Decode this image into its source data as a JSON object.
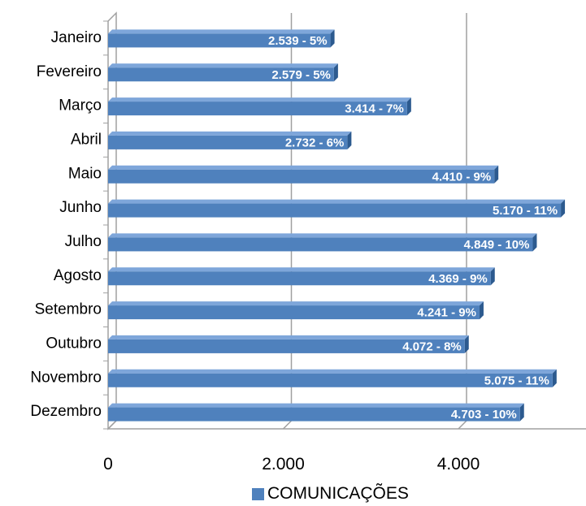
{
  "chart_data": {
    "type": "bar",
    "orientation": "horizontal",
    "categories": [
      "Janeiro",
      "Fevereiro",
      "Março",
      "Abril",
      "Maio",
      "Junho",
      "Julho",
      "Agosto",
      "Setembro",
      "Outubro",
      "Novembro",
      "Dezembro"
    ],
    "series": [
      {
        "name": "COMUNICAÇÕES",
        "values": [
          2539,
          2579,
          3414,
          2732,
          4410,
          5170,
          4849,
          4369,
          4241,
          4072,
          5075,
          4703
        ],
        "labels": [
          "2.539 - 5%",
          "2.579 - 5%",
          "3.414 - 7%",
          "2.732 - 6%",
          "4.410 - 9%",
          "5.170 - 11%",
          "4.849 - 10%",
          "4.369 - 9%",
          "4.241 - 9%",
          "4.072 - 8%",
          "5.075 - 11%",
          "4.703 - 10%"
        ]
      }
    ],
    "xlim": [
      0,
      6000
    ],
    "x_ticks": [
      0,
      2000,
      4000
    ],
    "x_tick_labels": [
      "0",
      "2.000",
      "4.000"
    ],
    "grid": true,
    "legend_position": "bottom",
    "title": "",
    "xlabel": "",
    "ylabel": "",
    "colors": {
      "bar": "#4F81BD",
      "bar_top": "#7EA6DA",
      "bar_side": "#2C5A8F",
      "gridline": "#A0A0A0",
      "text": "#000000",
      "label_text": "#ffffff"
    }
  },
  "legend": {
    "label": "COMUNICAÇÕES"
  }
}
